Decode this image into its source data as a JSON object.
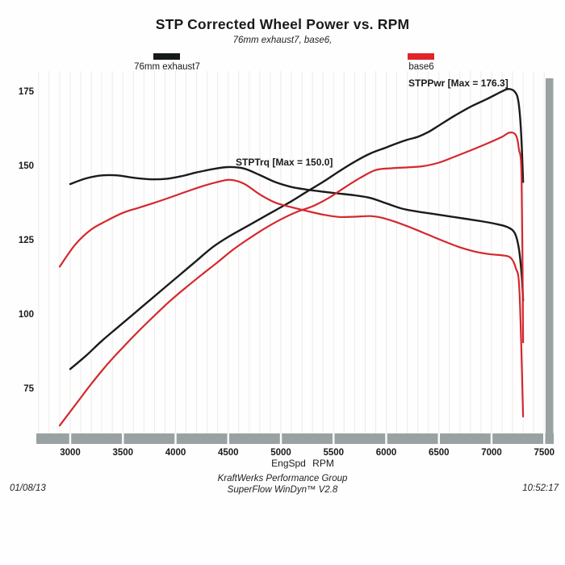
{
  "header": {
    "title": "STP Corrected Wheel Power vs. RPM",
    "subtitle": "76mm exhaust7, base6,"
  },
  "legend": [
    {
      "label": "76mm exhaust7",
      "color": "#171b17"
    },
    {
      "label": "base6",
      "color": "#e02529"
    }
  ],
  "annotations": {
    "power_max": "STPPwr [Max = 176.3]",
    "torque_max": "STPTrq [Max = 150.0]"
  },
  "axis": {
    "x_title": "EngSpd RPM"
  },
  "footer": {
    "company": "KraftWerks Performance Group",
    "software": "SuperFlow WinDyn™ V2.8",
    "date": "01/08/13",
    "time": "10:52:17"
  },
  "chart_data": {
    "type": "line",
    "title": "STP Corrected Wheel Power vs. RPM",
    "xlabel": "EngSpd RPM",
    "ylabel": "",
    "xlim": [
      2700,
      7600
    ],
    "ylim": [
      60,
      181
    ],
    "x_ticks": [
      3000,
      3500,
      4000,
      4500,
      5000,
      5500,
      6000,
      6500,
      7000,
      7500
    ],
    "y_ticks": [
      75,
      100,
      125,
      150,
      175
    ],
    "grid": "faint vertical gridlines every 100 RPM",
    "legend_position": "top",
    "colors": {
      "gridline": "#edebe7",
      "scrollbar_gray": "#99a1a2",
      "black_run": "#1b1b1b",
      "red_run": "#d4282e"
    },
    "series": [
      {
        "id": "stppwr-76mm-exhaust7",
        "name": "STPPwr 76mm exhaust7",
        "color": "#1b1b1b",
        "max": 176.3,
        "points": [
          [
            3000,
            82
          ],
          [
            3150,
            86.5
          ],
          [
            3300,
            91.5
          ],
          [
            3450,
            96
          ],
          [
            3600,
            100.5
          ],
          [
            3750,
            105
          ],
          [
            3900,
            109.5
          ],
          [
            4050,
            114
          ],
          [
            4200,
            118.5
          ],
          [
            4350,
            123
          ],
          [
            4500,
            126.5
          ],
          [
            4650,
            129.5
          ],
          [
            4800,
            132.5
          ],
          [
            4950,
            135.5
          ],
          [
            5100,
            138.5
          ],
          [
            5250,
            141.8
          ],
          [
            5400,
            145
          ],
          [
            5550,
            148.5
          ],
          [
            5700,
            151.8
          ],
          [
            5850,
            154.6
          ],
          [
            6000,
            156.6
          ],
          [
            6100,
            158
          ],
          [
            6200,
            159.2
          ],
          [
            6300,
            160.2
          ],
          [
            6400,
            161.8
          ],
          [
            6500,
            164
          ],
          [
            6650,
            167.3
          ],
          [
            6800,
            170.3
          ],
          [
            6950,
            172.8
          ],
          [
            7100,
            175.5
          ],
          [
            7160,
            176.3
          ],
          [
            7220,
            175.4
          ],
          [
            7255,
            172
          ],
          [
            7280,
            162
          ],
          [
            7300,
            145
          ]
        ]
      },
      {
        "id": "stptrq-76mm-exhaust7",
        "name": "STPTrq 76mm exhaust7",
        "color": "#1b1b1b",
        "max": 150.0,
        "points": [
          [
            3000,
            144.3
          ],
          [
            3150,
            146.2
          ],
          [
            3300,
            147.2
          ],
          [
            3450,
            147.2
          ],
          [
            3600,
            146.4
          ],
          [
            3750,
            145.9
          ],
          [
            3900,
            146
          ],
          [
            4050,
            146.9
          ],
          [
            4200,
            148.2
          ],
          [
            4350,
            149.3
          ],
          [
            4500,
            150
          ],
          [
            4650,
            149.5
          ],
          [
            4800,
            147.3
          ],
          [
            4950,
            144.9
          ],
          [
            5100,
            143.3
          ],
          [
            5250,
            142.4
          ],
          [
            5400,
            141.7
          ],
          [
            5550,
            141.1
          ],
          [
            5700,
            140.5
          ],
          [
            5850,
            139.6
          ],
          [
            6000,
            137.8
          ],
          [
            6150,
            136
          ],
          [
            6300,
            135
          ],
          [
            6450,
            134.2
          ],
          [
            6600,
            133.4
          ],
          [
            6750,
            132.6
          ],
          [
            6900,
            131.8
          ],
          [
            7050,
            130.8
          ],
          [
            7150,
            129.8
          ],
          [
            7220,
            127.8
          ],
          [
            7260,
            122.5
          ],
          [
            7285,
            114
          ],
          [
            7300,
            105
          ]
        ]
      },
      {
        "id": "stppwr-base6",
        "name": "STPPwr base6",
        "color": "#d4282e",
        "points": [
          [
            2900,
            63
          ],
          [
            3050,
            70
          ],
          [
            3200,
            77
          ],
          [
            3350,
            83.5
          ],
          [
            3500,
            89.3
          ],
          [
            3650,
            94.8
          ],
          [
            3800,
            100
          ],
          [
            3950,
            105
          ],
          [
            4100,
            109.5
          ],
          [
            4250,
            113.8
          ],
          [
            4400,
            118
          ],
          [
            4550,
            122.3
          ],
          [
            4700,
            126
          ],
          [
            4850,
            129.4
          ],
          [
            5000,
            132.4
          ],
          [
            5150,
            134.9
          ],
          [
            5300,
            136.8
          ],
          [
            5450,
            139.5
          ],
          [
            5600,
            143
          ],
          [
            5750,
            146.3
          ],
          [
            5900,
            149
          ],
          [
            6050,
            149.6
          ],
          [
            6200,
            149.9
          ],
          [
            6350,
            150.3
          ],
          [
            6500,
            151.5
          ],
          [
            6650,
            153.5
          ],
          [
            6800,
            155.6
          ],
          [
            6950,
            157.8
          ],
          [
            7100,
            160.2
          ],
          [
            7170,
            161.6
          ],
          [
            7230,
            160.8
          ],
          [
            7260,
            156
          ],
          [
            7285,
            146
          ],
          [
            7300,
            91
          ]
        ]
      },
      {
        "id": "stptrq-base6",
        "name": "STPTrq base6",
        "color": "#d4282e",
        "points": [
          [
            2900,
            116.5
          ],
          [
            3050,
            124
          ],
          [
            3200,
            129
          ],
          [
            3350,
            132
          ],
          [
            3500,
            134.6
          ],
          [
            3650,
            136.3
          ],
          [
            3800,
            138
          ],
          [
            3950,
            139.8
          ],
          [
            4100,
            141.7
          ],
          [
            4250,
            143.5
          ],
          [
            4400,
            145
          ],
          [
            4520,
            145.7
          ],
          [
            4650,
            144.4
          ],
          [
            4800,
            140.8
          ],
          [
            4950,
            138
          ],
          [
            5100,
            136.5
          ],
          [
            5250,
            135.2
          ],
          [
            5400,
            134
          ],
          [
            5550,
            133.2
          ],
          [
            5700,
            133.3
          ],
          [
            5850,
            133.5
          ],
          [
            5950,
            133
          ],
          [
            6100,
            131.4
          ],
          [
            6250,
            129.4
          ],
          [
            6400,
            127.2
          ],
          [
            6550,
            125
          ],
          [
            6700,
            123
          ],
          [
            6850,
            121.5
          ],
          [
            7000,
            120.6
          ],
          [
            7100,
            120.3
          ],
          [
            7180,
            119.5
          ],
          [
            7230,
            116
          ],
          [
            7265,
            108
          ],
          [
            7300,
            66
          ]
        ]
      }
    ]
  }
}
